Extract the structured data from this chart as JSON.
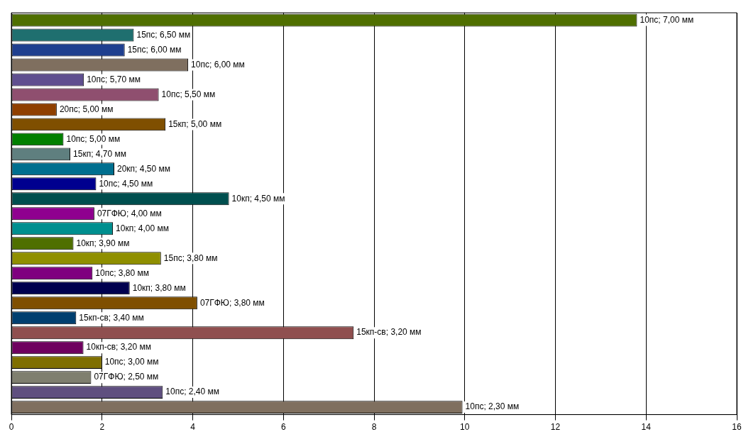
{
  "chart_data": {
    "type": "bar",
    "orientation": "horizontal",
    "categories": [
      "10пс; 7,00 мм",
      "15пс; 6,50 мм",
      "15пс; 6,00 мм",
      "10пс; 6,00 мм",
      "10пс; 5,70 мм",
      "10пс; 5,50 мм",
      "20пс; 5,00 мм",
      "15кп; 5,00 мм",
      "10пс; 5,00 мм",
      "15кп; 4,70 мм",
      "20кп; 4,50 мм",
      "10пс; 4,50 мм",
      "10кп; 4,50 мм",
      "07ГФЮ; 4,00 мм",
      "10кп; 4,00 мм",
      "10кп; 3,90 мм",
      "15пс; 3,80 мм",
      "10пс; 3,80 мм",
      "10кп; 3,80 мм",
      "07ГФЮ; 3,80 мм",
      "15кп-св; 3,40 мм",
      "15кп-св; 3,20 мм",
      "10кп-св; 3,20 мм",
      "10пс; 3,00 мм",
      "07ГФЮ; 2,50 мм",
      "10пс; 2,40 мм",
      "10пс; 2,30 мм"
    ],
    "values": [
      13.8,
      2.7,
      2.5,
      3.9,
      1.6,
      3.25,
      1.0,
      3.4,
      1.15,
      1.3,
      2.27,
      1.87,
      4.8,
      1.83,
      2.24,
      1.37,
      3.3,
      1.79,
      2.61,
      4.1,
      1.43,
      7.55,
      1.59,
      2.0,
      1.76,
      3.34,
      9.95
    ],
    "colors": [
      "#4f6f00",
      "#1f6f6f",
      "#1f3f8f",
      "#7f6f5f",
      "#5f4f8f",
      "#8f4f6f",
      "#8f3f00",
      "#7f4f00",
      "#007f00",
      "#5f7f7f",
      "#006f8f",
      "#00008f",
      "#004f4f",
      "#8f008f",
      "#008f8f",
      "#4f6f00",
      "#8f8f00",
      "#7f007f",
      "#00004f",
      "#7f4f00",
      "#003f6f",
      "#8f4f4f",
      "#6f005f",
      "#7f6f00",
      "#7f7f6f",
      "#5f4f7f",
      "#7f6f5f"
    ],
    "xlim": [
      0,
      16
    ],
    "xticks": [
      0,
      2,
      4,
      6,
      8,
      10,
      12,
      14,
      16
    ],
    "grid": "x"
  }
}
